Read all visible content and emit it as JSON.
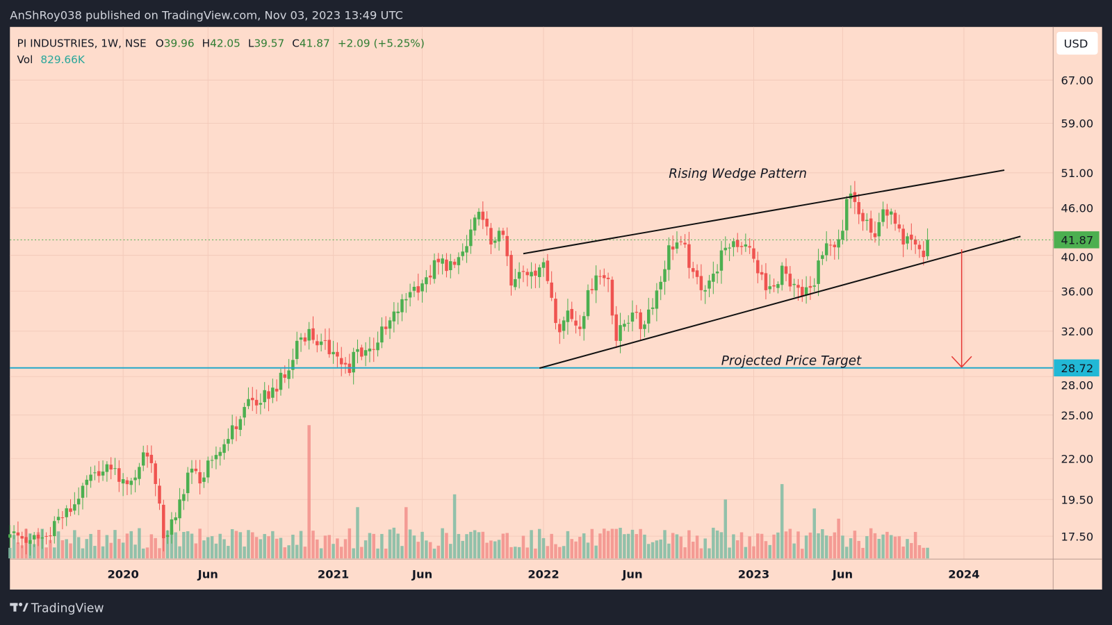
{
  "header": {
    "published": "AnShRoy038 published on TradingView.com, Nov 03, 2023 13:49 UTC"
  },
  "legend": {
    "symbol": "PI INDUSTRIES, 1W, NSE",
    "o_label": "O",
    "o": "39.96",
    "h_label": "H",
    "h": "42.05",
    "l_label": "L",
    "l": "39.57",
    "c_label": "C",
    "c": "41.87",
    "change": "+2.09 (+5.25%)",
    "vol_label": "Vol",
    "vol": "829.66K"
  },
  "currency_button": "USD",
  "footer": {
    "brand": "TradingView"
  },
  "colors": {
    "bg": "#fedccc",
    "up": "#4caf50",
    "down": "#ef5350",
    "up_vol": "#7fbca3",
    "down_vol": "#f28f8a",
    "target": "#22a8c9",
    "arrow": "#e53935"
  },
  "chart_data": {
    "type": "candlestick",
    "title": "PI INDUSTRIES, 1W, NSE",
    "y_scale": "log",
    "ylim": [
      16.4,
      76
    ],
    "y_ticks": [
      "67.00",
      "59.00",
      "51.00",
      "46.00",
      "40.00",
      "36.00",
      "32.00",
      "28.00",
      "25.00",
      "22.00",
      "19.50",
      "17.50"
    ],
    "x_ticks": [
      {
        "label": "2020",
        "week": 28
      },
      {
        "label": "Jun",
        "week": 49
      },
      {
        "label": "2021",
        "week": 80
      },
      {
        "label": "Jun",
        "week": 102
      },
      {
        "label": "2022",
        "week": 132
      },
      {
        "label": "Jun",
        "week": 154
      },
      {
        "label": "2023",
        "week": 184
      },
      {
        "label": "Jun",
        "week": 206
      },
      {
        "label": "2024",
        "week": 236
      }
    ],
    "week_range": [
      0,
      258
    ],
    "close_anchors": [
      [
        0,
        17.6
      ],
      [
        5,
        17.3
      ],
      [
        10,
        17.5
      ],
      [
        11,
        18.3
      ],
      [
        15,
        18.8
      ],
      [
        18,
        20.3
      ],
      [
        22,
        20.9
      ],
      [
        25,
        21.3
      ],
      [
        28,
        20.7
      ],
      [
        31,
        20.8
      ],
      [
        33,
        22.4
      ],
      [
        35,
        21.7
      ],
      [
        38,
        17.4
      ],
      [
        41,
        18.5
      ],
      [
        44,
        21.1
      ],
      [
        48,
        20.8
      ],
      [
        50,
        21.9
      ],
      [
        54,
        23.3
      ],
      [
        57,
        24.7
      ],
      [
        59,
        26.2
      ],
      [
        62,
        25.9
      ],
      [
        65,
        27.1
      ],
      [
        68,
        27.9
      ],
      [
        70,
        29.4
      ],
      [
        71,
        31.1
      ],
      [
        74,
        32.2
      ],
      [
        76,
        30.7
      ],
      [
        80,
        30.1
      ],
      [
        84,
        28.3
      ],
      [
        85,
        30.1
      ],
      [
        89,
        30.4
      ],
      [
        93,
        32.2
      ],
      [
        96,
        33.9
      ],
      [
        99,
        35.9
      ],
      [
        103,
        37.5
      ],
      [
        106,
        39.2
      ],
      [
        110,
        38.9
      ],
      [
        113,
        41.1
      ],
      [
        115,
        44.7
      ],
      [
        117,
        44.4
      ],
      [
        119,
        41.3
      ],
      [
        121,
        43.0
      ],
      [
        123,
        39.9
      ],
      [
        124,
        36.6
      ],
      [
        127,
        38.1
      ],
      [
        129,
        38.1
      ],
      [
        132,
        39.2
      ],
      [
        134,
        35.3
      ],
      [
        136,
        31.9
      ],
      [
        138,
        34.0
      ],
      [
        141,
        32.2
      ],
      [
        143,
        36.1
      ],
      [
        145,
        37.7
      ],
      [
        148,
        37.3
      ],
      [
        150,
        31.1
      ],
      [
        152,
        32.7
      ],
      [
        154,
        33.8
      ],
      [
        156,
        32.2
      ],
      [
        158,
        34.1
      ],
      [
        161,
        37.0
      ],
      [
        163,
        41.2
      ],
      [
        166,
        41.6
      ],
      [
        169,
        38.1
      ],
      [
        171,
        36.1
      ],
      [
        174,
        37.9
      ],
      [
        177,
        40.9
      ],
      [
        179,
        41.7
      ],
      [
        182,
        41.3
      ],
      [
        184,
        39.6
      ],
      [
        187,
        36.1
      ],
      [
        189,
        36.5
      ],
      [
        191,
        38.8
      ],
      [
        193,
        36.5
      ],
      [
        196,
        35.5
      ],
      [
        199,
        36.6
      ],
      [
        200,
        39.4
      ],
      [
        203,
        41.2
      ],
      [
        206,
        43.0
      ],
      [
        207,
        47.2
      ],
      [
        209,
        46.8
      ],
      [
        212,
        44.4
      ],
      [
        214,
        42.2
      ],
      [
        216,
        45.8
      ],
      [
        219,
        43.9
      ],
      [
        221,
        41.3
      ],
      [
        224,
        41.3
      ],
      [
        226,
        39.8
      ],
      [
        227,
        41.87
      ]
    ],
    "volume_k": {
      "baseline": 1500,
      "latest": 829.66,
      "spikes": [
        [
          74,
          10400,
          "down"
        ],
        [
          86,
          4000,
          "up"
        ],
        [
          98,
          4000,
          "down"
        ],
        [
          110,
          5000,
          "up"
        ],
        [
          177,
          4600,
          "up"
        ],
        [
          191,
          5800,
          "up"
        ],
        [
          199,
          3900,
          "up"
        ],
        [
          205,
          3100,
          "down"
        ]
      ]
    },
    "annotations": {
      "wedge_label": "Rising Wedge Pattern",
      "target_label": "Projected Price Target",
      "last_price": "41.87",
      "target_price": "28.72",
      "upper_line": [
        [
          127,
          40.2
        ],
        [
          246,
          51.4
        ]
      ],
      "lower_line": [
        [
          131,
          28.7
        ],
        [
          250,
          42.3
        ]
      ],
      "target_level": 28.72
    }
  }
}
